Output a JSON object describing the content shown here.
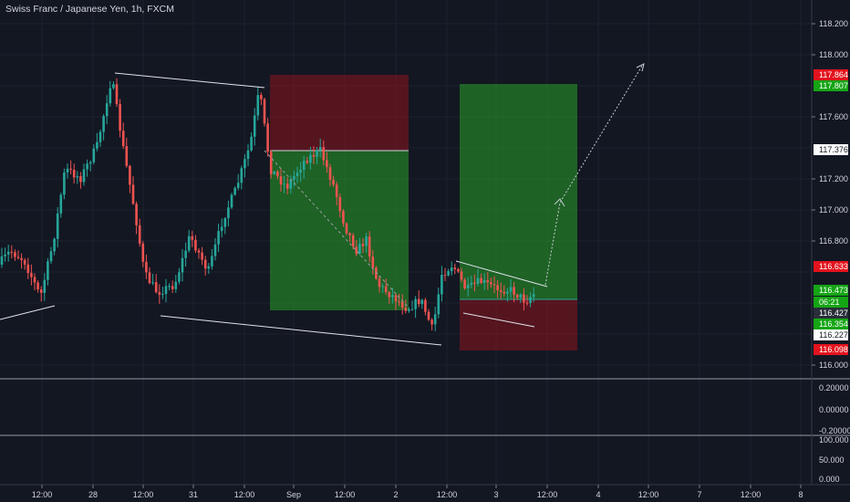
{
  "title": "Swiss Franc / Japanese Yen, 1h, FXCM",
  "colors": {
    "background": "#131722",
    "grid": "#1e2230",
    "up": "#26a69a",
    "down": "#ef5350",
    "axis_text": "#d1d4dc",
    "line": "#e0e3eb",
    "profit_zone": "rgba(40,160,40,0.55)",
    "loss_zone": "rgba(130,20,30,0.6)",
    "badge_red": "#e3131d",
    "badge_green": "#15a515"
  },
  "price_axis": {
    "ticks": [
      "118.200",
      "118.000",
      "117.600",
      "117.200",
      "117.000",
      "116.800",
      "116.000"
    ],
    "badges": [
      {
        "label": "117.864",
        "kind": "red"
      },
      {
        "label": "117.807",
        "kind": "green"
      },
      {
        "label": "117.376",
        "kind": "white"
      },
      {
        "label": "116.633",
        "kind": "red"
      },
      {
        "label": "116.473",
        "kind": "green"
      },
      {
        "label": "06:21",
        "kind": "green"
      },
      {
        "label": "116.427",
        "kind": "dark"
      },
      {
        "label": "116.354",
        "kind": "green"
      },
      {
        "label": "116.227",
        "kind": "white"
      },
      {
        "label": "116.098",
        "kind": "red"
      }
    ]
  },
  "indicator_1": {
    "ticks": [
      "0.20000",
      "0.00000",
      "-0.20000"
    ]
  },
  "indicator_2": {
    "ticks": [
      "100.000",
      "50.000",
      "0.000"
    ]
  },
  "time_axis": {
    "labels": [
      "12:00",
      "28",
      "12:00",
      "31",
      "12:00",
      "Sep",
      "12:00",
      "2",
      "12:00",
      "3",
      "12:00",
      "4",
      "12:00",
      "7",
      "12:00",
      "8"
    ]
  }
}
